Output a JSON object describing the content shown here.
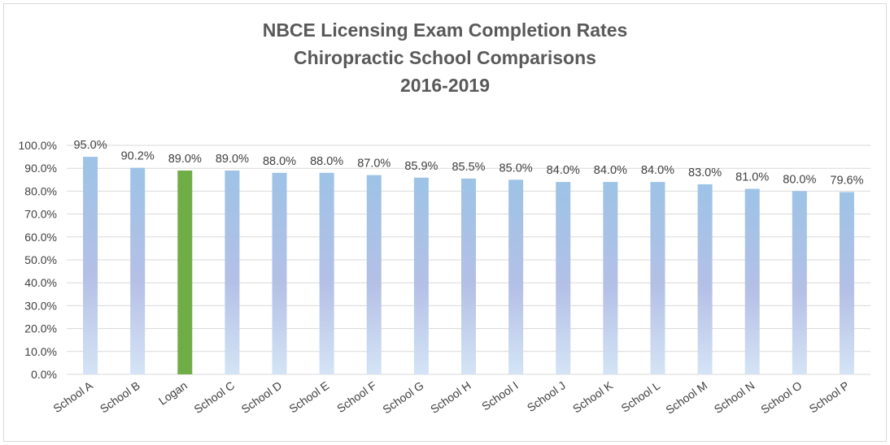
{
  "chart_data": {
    "type": "bar",
    "title_lines": [
      "NBCE Licensing Exam Completion Rates",
      "Chiropractic School Comparisons",
      "2016-2019"
    ],
    "categories": [
      "School A",
      "School B",
      "Logan",
      "School C",
      "School D",
      "School E",
      "School F",
      "School G",
      "School H",
      "School I",
      "School J",
      "School K",
      "School L",
      "School M",
      "School N",
      "School O",
      "School P"
    ],
    "values": [
      95.0,
      90.2,
      89.0,
      89.0,
      88.0,
      88.0,
      87.0,
      85.9,
      85.5,
      85.0,
      84.0,
      84.0,
      84.0,
      83.0,
      81.0,
      80.0,
      79.6
    ],
    "data_labels": [
      "95.0%",
      "90.2%",
      "89.0%",
      "89.0%",
      "88.0%",
      "88.0%",
      "87.0%",
      "85.9%",
      "85.5%",
      "85.0%",
      "84.0%",
      "84.0%",
      "84.0%",
      "83.0%",
      "81.0%",
      "80.0%",
      "79.6%"
    ],
    "highlight": "Logan",
    "ylim": [
      0,
      100
    ],
    "yticks": [
      "0.0%",
      "10.0%",
      "20.0%",
      "30.0%",
      "40.0%",
      "50.0%",
      "60.0%",
      "70.0%",
      "80.0%",
      "90.0%",
      "100.0%"
    ],
    "xlabel": "",
    "ylabel": "",
    "grid": true,
    "colors": {
      "bar_gradient_top": "#9dc3e6",
      "bar_gradient_mid": "#b4c0e6",
      "bar_gradient_bottom": "#cfe2f3",
      "highlight_bar": "#70ad47",
      "grid": "#d9d9d9",
      "text": "#404040",
      "title": "#595959"
    }
  }
}
